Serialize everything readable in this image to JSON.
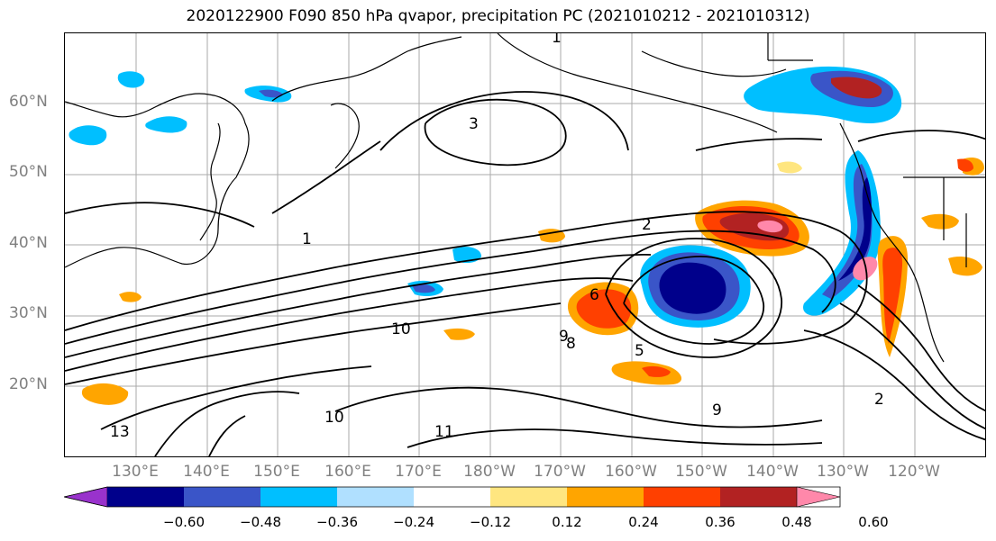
{
  "title": "2020122900 F090 850 hPa qvapor, precipitation PC (2021010212 - 2021010312)",
  "map": {
    "lat_labels": [
      "60°N",
      "50°N",
      "40°N",
      "30°N",
      "20°N"
    ],
    "lon_labels": [
      "130°E",
      "140°E",
      "150°E",
      "160°E",
      "170°E",
      "180°W",
      "170°W",
      "160°W",
      "150°W",
      "140°W",
      "130°W",
      "120°W"
    ],
    "contour_labels": [
      "1",
      "2",
      "3",
      "5",
      "6",
      "8",
      "9",
      "10",
      "11",
      "13"
    ],
    "gridlines": true
  },
  "colorbar": {
    "tick_labels": [
      "−0.60",
      "−0.48",
      "−0.36",
      "−0.24",
      "−0.12",
      "0.12",
      "0.24",
      "0.36",
      "0.48",
      "0.60"
    ],
    "colors": [
      "#9932cc",
      "#00008b",
      "#3a55c8",
      "#00bfff",
      "#b0e0ff",
      "#ffffff",
      "#ffe680",
      "#ffa500",
      "#ff4000",
      "#b22222",
      "#ff88aa"
    ]
  }
}
